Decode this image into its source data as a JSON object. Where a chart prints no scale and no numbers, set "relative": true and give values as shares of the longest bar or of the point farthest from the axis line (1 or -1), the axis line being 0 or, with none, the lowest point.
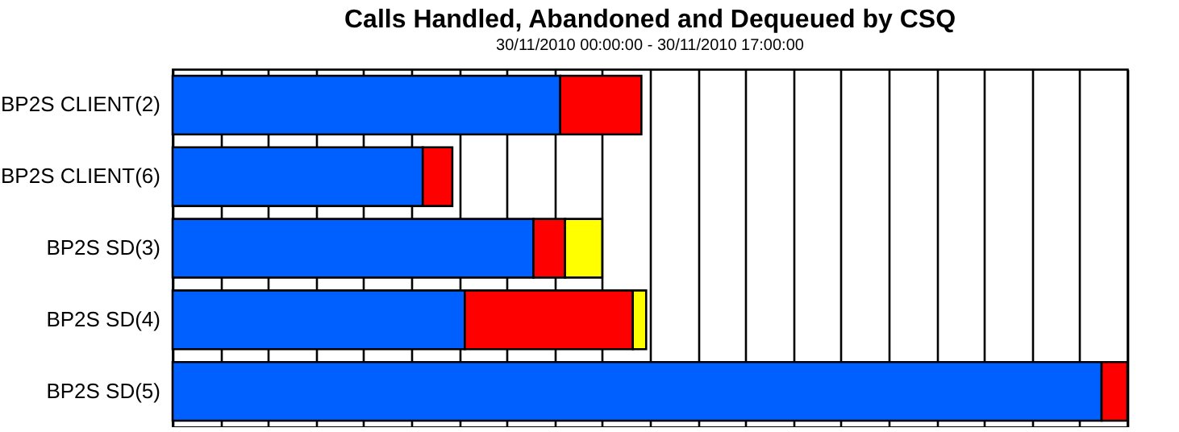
{
  "chart_data": {
    "type": "bar",
    "orientation": "horizontal",
    "stacked": true,
    "relative": true,
    "grid": "x",
    "title": "Calls Handled, Abandoned and Dequeued by CSQ",
    "subtitle": "30/11/2010 00:00:00    -    30/11/2010 17:00:00",
    "categories": [
      "BP2S CLIENT(2)",
      "BP2S CLIENT(6)",
      "BP2S SD(3)",
      "BP2S SD(4)",
      "BP2S SD(5)"
    ],
    "series": [
      {
        "color": "#0060ff",
        "values": [
          0.406,
          0.262,
          0.378,
          0.306,
          0.973
        ]
      },
      {
        "color": "#ff0000",
        "values": [
          0.085,
          0.031,
          0.033,
          0.176,
          0.027
        ]
      },
      {
        "color": "#ffff00",
        "values": [
          null,
          null,
          0.039,
          0.014,
          null
        ]
      }
    ]
  }
}
